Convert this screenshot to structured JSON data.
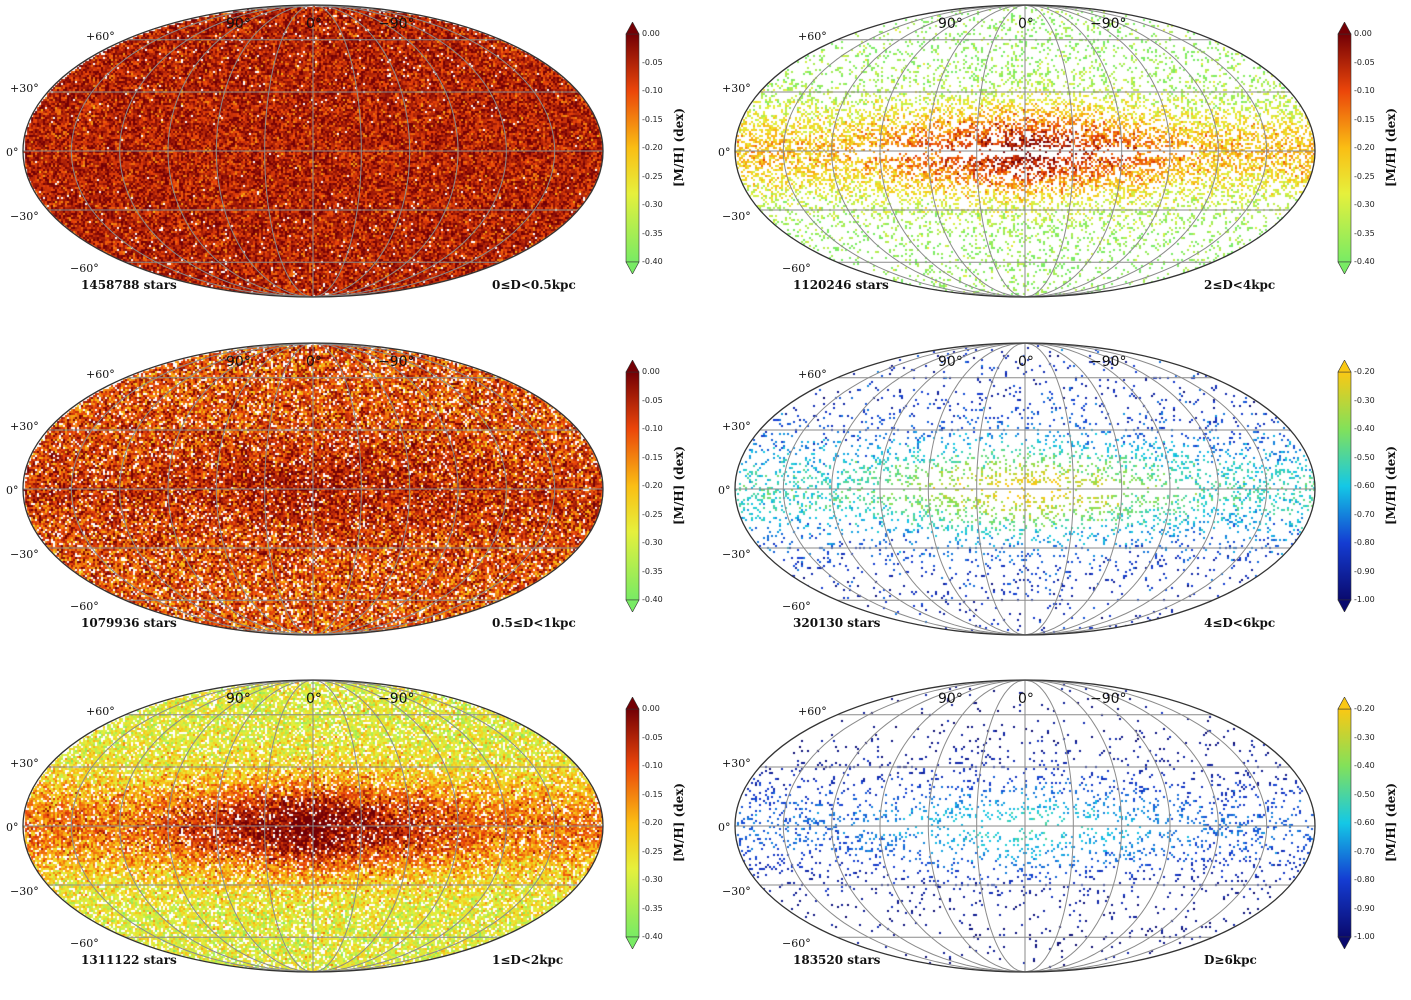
{
  "chart_data": [
    {
      "type": "heatmap",
      "projection": "mollweide",
      "star_count": "1458788 stars",
      "distance_range": "0≤D<0.5kpc",
      "colorbar_label": "[M/H] (dex)",
      "colormap": "green-yellow-red",
      "colorbar_range": [
        -0.4,
        0.0
      ],
      "colorbar_ticks": [
        "0.00",
        "-0.05",
        "-0.10",
        "-0.15",
        "-0.20",
        "-0.25",
        "-0.30",
        "-0.35",
        "-0.40"
      ],
      "lat_labels": [
        "+60°",
        "+30°",
        "0°",
        "−30°",
        "−60°"
      ],
      "lon_labels": [
        "90°",
        "0°",
        "−90°"
      ],
      "pattern": {
        "mean": -0.05,
        "spread": 0.1,
        "disk_gradient": 0.0,
        "density": 1.0,
        "missing_plane": false,
        "empty_frac": 0.03
      }
    },
    {
      "type": "heatmap",
      "projection": "mollweide",
      "star_count": "1079936 stars",
      "distance_range": "0.5≤D<1kpc",
      "colorbar_label": "[M/H] (dex)",
      "colormap": "green-yellow-red",
      "colorbar_range": [
        -0.4,
        0.0
      ],
      "colorbar_ticks": [
        "0.00",
        "-0.05",
        "-0.10",
        "-0.15",
        "-0.20",
        "-0.25",
        "-0.30",
        "-0.35",
        "-0.40"
      ],
      "lat_labels": [
        "+60°",
        "+30°",
        "0°",
        "−30°",
        "−60°"
      ],
      "lon_labels": [
        "90°",
        "0°",
        "−90°"
      ],
      "pattern": {
        "mean": -0.1,
        "spread": 0.12,
        "disk_gradient": 0.05,
        "density": 0.95,
        "missing_plane": false,
        "empty_frac": 0.1
      }
    },
    {
      "type": "heatmap",
      "projection": "mollweide",
      "star_count": "1311122 stars",
      "distance_range": "1≤D<2kpc",
      "colorbar_label": "[M/H] (dex)",
      "colormap": "green-yellow-red",
      "colorbar_range": [
        -0.4,
        0.0
      ],
      "colorbar_ticks": [
        "0.00",
        "-0.05",
        "-0.10",
        "-0.15",
        "-0.20",
        "-0.25",
        "-0.30",
        "-0.35",
        "-0.40"
      ],
      "lat_labels": [
        "+60°",
        "+30°",
        "0°",
        "−30°",
        "−60°"
      ],
      "lon_labels": [
        "90°",
        "0°",
        "−90°"
      ],
      "pattern": {
        "mean": -0.28,
        "spread": 0.1,
        "disk_gradient": 0.25,
        "density": 0.92,
        "missing_plane": false,
        "empty_frac": 0.15
      }
    },
    {
      "type": "heatmap",
      "projection": "mollweide",
      "star_count": "1120246 stars",
      "distance_range": "2≤D<4kpc",
      "colorbar_label": "[M/H] (dex)",
      "colormap": "green-yellow-red",
      "colorbar_range": [
        -0.4,
        0.0
      ],
      "colorbar_ticks": [
        "0.00",
        "-0.05",
        "-0.10",
        "-0.15",
        "-0.20",
        "-0.25",
        "-0.30",
        "-0.35",
        "-0.40"
      ],
      "lat_labels": [
        "+60°",
        "+30°",
        "0°",
        "−30°",
        "−60°"
      ],
      "lon_labels": [
        "90°",
        "0°",
        "−90°"
      ],
      "pattern": {
        "mean": -0.38,
        "spread": 0.08,
        "disk_gradient": 0.3,
        "density": 0.55,
        "missing_plane": true,
        "empty_frac": 0.35
      }
    },
    {
      "type": "heatmap",
      "projection": "mollweide",
      "star_count": "320130 stars",
      "distance_range": "4≤D<6kpc",
      "colorbar_label": "[M/H] (dex)",
      "colormap": "blue-cyan-green-yellow",
      "colorbar_range": [
        -1.0,
        -0.2
      ],
      "colorbar_ticks": [
        "-0.20",
        "-0.30",
        "-0.40",
        "-0.50",
        "-0.60",
        "-0.70",
        "-0.80",
        "-0.90",
        "-1.00"
      ],
      "lat_labels": [
        "+60°",
        "+30°",
        "0°",
        "−30°",
        "−60°"
      ],
      "lon_labels": [
        "90°",
        "0°",
        "−90°"
      ],
      "pattern": {
        "mean": -0.85,
        "spread": 0.12,
        "disk_gradient": 0.55,
        "density": 0.25,
        "missing_plane": true,
        "empty_frac": 0.6
      }
    },
    {
      "type": "heatmap",
      "projection": "mollweide",
      "star_count": "183520 stars",
      "distance_range": "D≥6kpc",
      "colorbar_label": "[M/H] (dex)",
      "colormap": "blue-cyan-green-yellow",
      "colorbar_range": [
        -1.0,
        -0.2
      ],
      "colorbar_ticks": [
        "-0.20",
        "-0.30",
        "-0.40",
        "-0.50",
        "-0.60",
        "-0.70",
        "-0.80",
        "-0.90",
        "-1.00"
      ],
      "lat_labels": [
        "+60°",
        "+30°",
        "0°",
        "−30°",
        "−60°"
      ],
      "lon_labels": [
        "90°",
        "0°",
        "−90°"
      ],
      "pattern": {
        "mean": -0.95,
        "spread": 0.08,
        "disk_gradient": 0.35,
        "density": 0.18,
        "missing_plane": true,
        "empty_frac": 0.7
      }
    }
  ]
}
